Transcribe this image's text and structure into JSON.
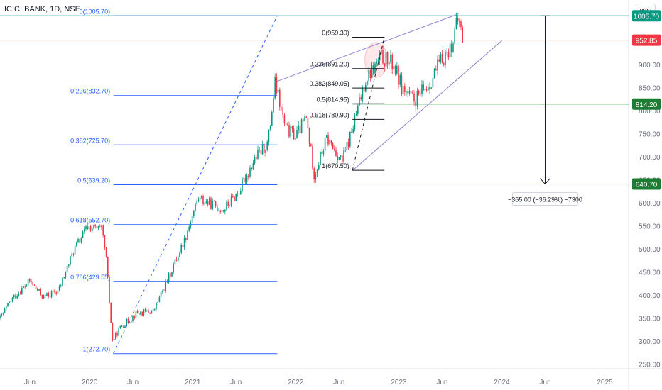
{
  "header": {
    "title": "ICICI BANK, 1D, NSE",
    "currency": "INR"
  },
  "chart_data": {
    "type": "candlestick",
    "ylim": [
      240,
      1040
    ],
    "y_ticks": [
      250,
      300,
      350,
      400,
      450,
      500,
      550,
      600,
      650,
      700,
      750,
      800,
      850,
      900
    ],
    "y_tick_labels": [
      "250.00",
      "300.00",
      "350.00",
      "400.00",
      "450.00",
      "500.00",
      "550.00",
      "600.00",
      "650.00",
      "700.00",
      "750.00",
      "800.00",
      "850.00",
      "900.00"
    ],
    "x_ticks": [
      {
        "label": "Jun",
        "date": 2019.42
      },
      {
        "label": "2020",
        "date": 2020.0
      },
      {
        "label": "Jun",
        "date": 2020.42
      },
      {
        "label": "2021",
        "date": 2021.0
      },
      {
        "label": "Jun",
        "date": 2021.42
      },
      {
        "label": "2022",
        "date": 2022.0
      },
      {
        "label": "Jun",
        "date": 2022.42
      },
      {
        "label": "2023",
        "date": 2023.0
      },
      {
        "label": "Jun",
        "date": 2023.42
      },
      {
        "label": "2024",
        "date": 2024.0
      },
      {
        "label": "Jun",
        "date": 2024.42
      },
      {
        "label": "2025",
        "date": 2025.0
      }
    ],
    "xlim": [
      2019.13,
      2025.23
    ],
    "price_path": [
      [
        2019.13,
        350
      ],
      [
        2019.25,
        392
      ],
      [
        2019.42,
        430
      ],
      [
        2019.55,
        395
      ],
      [
        2019.7,
        410
      ],
      [
        2019.85,
        500
      ],
      [
        2019.98,
        548
      ],
      [
        2020.12,
        540
      ],
      [
        2020.16,
        480
      ],
      [
        2020.22,
        300
      ],
      [
        2020.3,
        330
      ],
      [
        2020.45,
        360
      ],
      [
        2020.62,
        365
      ],
      [
        2020.75,
        430
      ],
      [
        2020.92,
        520
      ],
      [
        2021.05,
        610
      ],
      [
        2021.15,
        600
      ],
      [
        2021.3,
        585
      ],
      [
        2021.45,
        625
      ],
      [
        2021.6,
        695
      ],
      [
        2021.73,
        730
      ],
      [
        2021.8,
        860
      ],
      [
        2021.9,
        760
      ],
      [
        2022.0,
        745
      ],
      [
        2022.1,
        785
      ],
      [
        2022.18,
        660
      ],
      [
        2022.3,
        740
      ],
      [
        2022.45,
        690
      ],
      [
        2022.55,
        760
      ],
      [
        2022.68,
        870
      ],
      [
        2022.83,
        915
      ],
      [
        2022.95,
        900
      ],
      [
        2023.03,
        850
      ],
      [
        2023.15,
        820
      ],
      [
        2023.3,
        860
      ],
      [
        2023.4,
        905
      ],
      [
        2023.5,
        935
      ],
      [
        2023.58,
        1000
      ],
      [
        2023.62,
        955
      ]
    ],
    "price_labels": [
      {
        "value": 1005.7,
        "text": "1005.70",
        "color": "#089981"
      },
      {
        "value": 952.85,
        "text": "952.85",
        "color": "#f23645"
      },
      {
        "value": 814.2,
        "text": "814.20",
        "color": "#1e7b34"
      },
      {
        "value": 640.7,
        "text": "640.70",
        "color": "#1e7b34"
      }
    ],
    "fib_left": {
      "x_start": 2020.23,
      "x_end": 2021.82,
      "label_x": 2020.22,
      "levels": [
        {
          "value": 1005.7,
          "text": "0(1005.70)"
        },
        {
          "value": 832.7,
          "text": "0.236(832.70)"
        },
        {
          "value": 725.7,
          "text": "0.382(725.70)"
        },
        {
          "value": 639.2,
          "text": "0.5(639.20)"
        },
        {
          "value": 552.7,
          "text": "0.618(552.70)"
        },
        {
          "value": 429.55,
          "text": "0.786(429.55)"
        },
        {
          "value": 272.7,
          "text": "1(272.70)"
        }
      ],
      "trend_from": [
        2020.23,
        272.7
      ],
      "trend_to": [
        2021.82,
        1005.7
      ]
    },
    "fib_right": {
      "x_start": 2022.55,
      "x_end": 2022.86,
      "label_x": 2022.54,
      "levels": [
        {
          "value": 959.3,
          "text": "0(959.30)"
        },
        {
          "value": 891.2,
          "text": "0.236(891.20)"
        },
        {
          "value": 849.05,
          "text": "0.382(849.05)"
        },
        {
          "value": 814.95,
          "text": "0.5(814.95)"
        },
        {
          "value": 780.9,
          "text": "0.618(780.90)"
        },
        {
          "value": 670.5,
          "text": "1(670.50)"
        }
      ],
      "trend_from": [
        2022.55,
        670.5
      ],
      "trend_to": [
        2022.86,
        959.3
      ]
    },
    "channel": {
      "upper": [
        [
          2021.8,
          862
        ],
        [
          2023.58,
          1010
        ]
      ],
      "lower": [
        [
          2022.55,
          670
        ],
        [
          2024.0,
          952
        ]
      ]
    },
    "horizontal_lines": [
      {
        "value": 1005.7,
        "color": "#089981",
        "from": 2019.13
      },
      {
        "value": 952.85,
        "color": "#f7a9b0",
        "from": 2019.13
      },
      {
        "value": 814.2,
        "color": "#1e7b34",
        "from": 2022.55
      },
      {
        "value": 640.7,
        "color": "#1e7b34",
        "from": 2021.82
      }
    ],
    "highlight": {
      "center": [
        2022.78,
        910
      ],
      "rx": 0.11,
      "ry": 38
    },
    "measure": {
      "x": 2024.42,
      "from": 1005.7,
      "to": 640.7,
      "label": "−365.00 (−36.29%) −7300"
    }
  }
}
